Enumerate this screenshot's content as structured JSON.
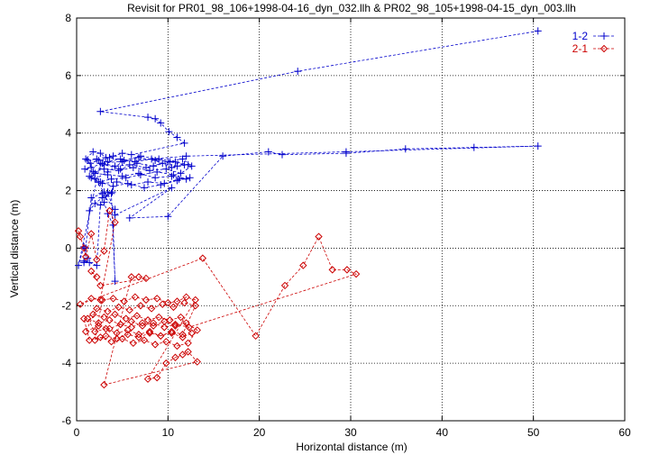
{
  "chart_data": {
    "type": "scatter",
    "title": "Revisit for PR01_98_106+1998-04-16_dyn_032.llh & PR02_98_105+1998-04-15_dyn_003.llh",
    "xlabel": "Horizontal distance (m)",
    "ylabel": "Vertical distance (m)",
    "xlim": [
      0,
      60
    ],
    "ylim": [
      -6,
      8
    ],
    "xticks": [
      "0",
      "10",
      "20",
      "30",
      "40",
      "50",
      "60"
    ],
    "yticks": [
      "-6",
      "-4",
      "-2",
      "0",
      "2",
      "4",
      "6",
      "8"
    ],
    "grid": true,
    "legend_position": "top-right",
    "series": [
      {
        "name": "1-2",
        "color": "#0000cc",
        "marker": "plus",
        "x": [
          50.5,
          24.2,
          2.6,
          7.8,
          8.6,
          9.2,
          10.1,
          11.0,
          11.8,
          6.0,
          5.0,
          4.0,
          3.2,
          2.6,
          1.8,
          1.0,
          1.5,
          2.4,
          3.6,
          5.2,
          7.0,
          9.0,
          10.8,
          12.2,
          11.0,
          9.4,
          7.6,
          5.8,
          4.2,
          2.8,
          1.6,
          0.9,
          1.8,
          3.0,
          4.6,
          6.2,
          8.0,
          9.8,
          11.4,
          12.6,
          11.6,
          10.0,
          8.2,
          6.4,
          4.8,
          3.4,
          2.2,
          1.2,
          2.0,
          3.4,
          5.0,
          6.8,
          8.6,
          10.4,
          12.0,
          10.6,
          8.8,
          7.0,
          5.4,
          3.8,
          2.4,
          1.4,
          2.8,
          4.4,
          6.0,
          7.8,
          9.6,
          11.2,
          12.4,
          11.0,
          9.2,
          7.4,
          5.6,
          4.0,
          2.6,
          1.6,
          3.0,
          4.8,
          6.6,
          8.4,
          10.2,
          11.8,
          10.4,
          8.6,
          6.8,
          5.0,
          3.4,
          2.0,
          3.0,
          3.2,
          3.9,
          2.8,
          2.0,
          1.4,
          1.0,
          0.8,
          1.4,
          2.2,
          2.6,
          3.0,
          3.4,
          4.0,
          4.2,
          3.8,
          3.4,
          4.2,
          10.4,
          5.8,
          10.0,
          16.0,
          21.0,
          22.5,
          29.5,
          36.0,
          43.5,
          50.5,
          29.5,
          12.0,
          2.6,
          0.2,
          0.8,
          1.2,
          0.8,
          1.6,
          2.8,
          4.2
        ],
        "y": [
          7.55,
          6.15,
          4.75,
          4.55,
          4.5,
          4.35,
          4.05,
          3.85,
          3.65,
          3.25,
          3.3,
          3.2,
          3.15,
          3.3,
          3.35,
          3.1,
          2.95,
          3.05,
          3.15,
          3.05,
          3.2,
          3.1,
          3.0,
          2.9,
          2.85,
          2.95,
          2.8,
          2.9,
          2.85,
          2.95,
          2.8,
          2.75,
          2.65,
          2.75,
          2.7,
          2.8,
          2.7,
          2.75,
          2.6,
          2.85,
          3.1,
          3.0,
          3.1,
          3.0,
          3.1,
          3.0,
          3.1,
          3.05,
          2.6,
          2.55,
          2.5,
          2.6,
          2.45,
          2.5,
          2.4,
          2.55,
          2.65,
          2.55,
          2.45,
          2.4,
          2.3,
          2.5,
          2.25,
          2.3,
          2.2,
          2.3,
          2.25,
          2.4,
          2.45,
          2.35,
          2.2,
          2.1,
          2.25,
          2.15,
          2.3,
          2.45,
          2.9,
          2.75,
          2.95,
          2.85,
          3.0,
          2.9,
          2.8,
          3.05,
          3.15,
          3.0,
          2.65,
          2.4,
          1.95,
          1.8,
          1.95,
          1.75,
          1.55,
          1.3,
          0.0,
          -0.45,
          -0.5,
          -0.6,
          1.5,
          1.6,
          1.2,
          0.8,
          -1.15,
          1.9,
          1.95,
          1.15,
          2.1,
          1.05,
          1.1,
          3.2,
          3.35,
          3.25,
          3.3,
          3.45,
          3.5,
          3.55,
          3.35,
          3.2,
          2.95,
          -0.6,
          0.05,
          -0.35,
          -0.5,
          1.75,
          1.9,
          1.35
        ]
      },
      {
        "name": "2-1",
        "color": "#cc0000",
        "marker": "diamond",
        "x": [
          0.2,
          0.4,
          0.8,
          1.0,
          1.6,
          2.2,
          3.0,
          3.6,
          4.2,
          2.6,
          1.6,
          0.4,
          13.8,
          19.6,
          22.8,
          24.8,
          26.5,
          28.0,
          29.6,
          30.6,
          12.3,
          10.8,
          9.6,
          8.4,
          7.2,
          6.0,
          4.8,
          3.6,
          2.4,
          1.2,
          2.0,
          3.2,
          4.4,
          5.6,
          6.8,
          8.0,
          9.2,
          10.4,
          11.6,
          12.6,
          11.4,
          10.2,
          9.0,
          7.8,
          6.6,
          5.4,
          4.2,
          3.0,
          1.8,
          0.8,
          1.4,
          2.6,
          3.8,
          5.0,
          6.2,
          7.4,
          8.6,
          9.8,
          11.0,
          12.2,
          13.2,
          12.0,
          10.8,
          9.6,
          8.4,
          7.2,
          6.0,
          4.8,
          3.6,
          2.4,
          1.0,
          2.2,
          3.4,
          4.6,
          5.8,
          7.0,
          8.2,
          9.4,
          10.6,
          11.8,
          13.0,
          11.6,
          10.4,
          9.2,
          8.0,
          6.8,
          5.6,
          4.4,
          3.2,
          2.0,
          2.8,
          4.0,
          5.2,
          6.4,
          7.6,
          8.8,
          10.0,
          11.0,
          12.0,
          13.0,
          7.8,
          8.8,
          9.8,
          10.8,
          11.6,
          12.2,
          13.2,
          3.0,
          6.0,
          6.8,
          7.6,
          2.6,
          1.6,
          2.2
        ],
        "y": [
          0.6,
          0.4,
          0.0,
          -0.3,
          0.5,
          -0.4,
          -0.1,
          1.3,
          0.9,
          -1.8,
          -1.75,
          -1.95,
          -0.35,
          -3.05,
          -1.3,
          -0.6,
          0.4,
          -0.75,
          -0.75,
          -0.9,
          -2.75,
          -2.65,
          -2.75,
          -2.6,
          -2.7,
          -2.55,
          -2.65,
          -2.5,
          -2.6,
          -2.45,
          -2.9,
          -2.8,
          -2.95,
          -2.85,
          -3.0,
          -2.9,
          -3.05,
          -2.95,
          -3.1,
          -2.95,
          -2.4,
          -2.5,
          -2.4,
          -2.5,
          -2.35,
          -2.45,
          -2.3,
          -2.4,
          -2.3,
          -2.45,
          -3.2,
          -3.1,
          -3.25,
          -3.15,
          -3.3,
          -3.2,
          -3.35,
          -3.25,
          -3.4,
          -3.3,
          -2.85,
          -2.6,
          -2.7,
          -2.55,
          -2.7,
          -2.6,
          -2.75,
          -2.65,
          -2.8,
          -2.7,
          -2.9,
          -2.1,
          -2.2,
          -2.05,
          -2.15,
          -2.0,
          -2.1,
          -1.95,
          -2.05,
          -1.9,
          -2.0,
          -3.0,
          -2.9,
          -3.05,
          -2.95,
          -3.1,
          -3.0,
          -3.15,
          -3.05,
          -3.2,
          -1.8,
          -1.75,
          -1.85,
          -1.7,
          -1.8,
          -1.75,
          -1.9,
          -1.85,
          -1.7,
          -1.8,
          -4.55,
          -4.5,
          -4.0,
          -3.8,
          -3.7,
          -3.6,
          -3.95,
          -4.75,
          -1.0,
          -1.0,
          -1.05,
          -1.3,
          -0.8,
          -1.0
        ]
      }
    ]
  }
}
